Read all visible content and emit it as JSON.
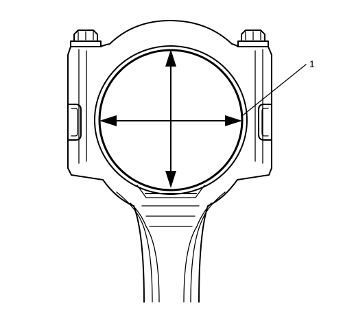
{
  "figure": {
    "callouts": [
      {
        "label": "1"
      }
    ]
  }
}
